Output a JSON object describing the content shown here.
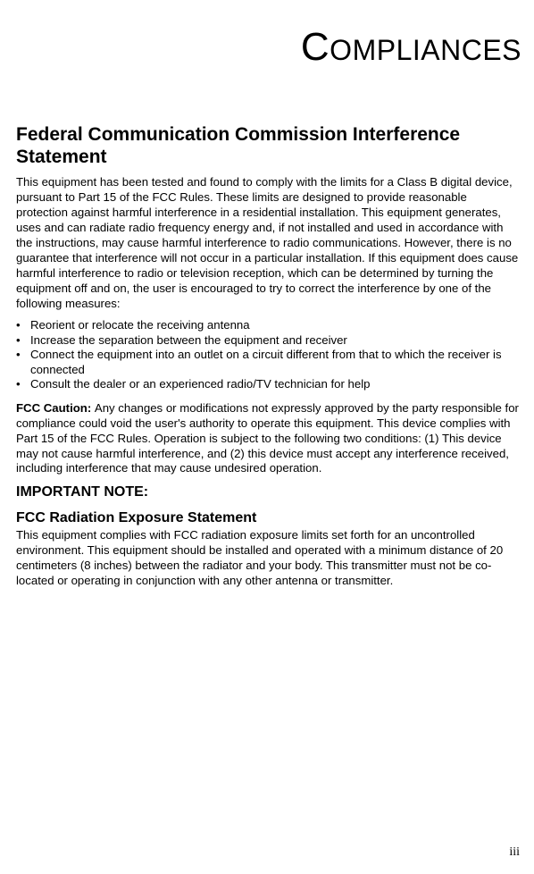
{
  "title_parts": {
    "first": "C",
    "rest": "OMPLIANCES"
  },
  "section1": {
    "heading": "Federal Communication Commission Interference Statement",
    "para1": "This equipment has been tested and found to comply with the limits for a Class B digital device, pursuant to Part 15 of the FCC Rules. These limits are designed to provide reasonable protection against harmful interference in a residential installation. This equipment generates, uses and can radiate radio frequency energy and, if not installed and used in accordance with the instructions, may cause harmful interference to radio communications. However, there is no guarantee that interference will not occur in a particular installation. If this equipment does cause harmful interference to radio or television reception, which can be determined by turning the equipment off and on, the user is encouraged to try to correct the interference by one of the following measures:",
    "bullets": [
      "Reorient or relocate the receiving antenna",
      "Increase the separation between the equipment and receiver",
      "Connect the equipment into an outlet on a circuit different from that to which the receiver is connected",
      "Consult the dealer or an experienced radio/TV technician for help"
    ],
    "caution_label": "FCC Caution: ",
    "caution_text": "Any changes or modifications not expressly approved by the party responsible for compliance could void the user's authority to operate this equipment. This device complies with Part 15 of the FCC Rules. Operation is subject to the following two conditions: (1) This device may not cause harmful interference, and (2) this device must accept any interference received, including interference that may cause undesired operation."
  },
  "section2": {
    "heading1": "IMPORTANT NOTE:",
    "heading2": "FCC Radiation Exposure Statement",
    "para": "This equipment complies with FCC radiation exposure limits set forth for an uncontrolled environment. This equipment should be installed and operated with a minimum distance of 20 centimeters (8 inches) between the radiator and your body. This transmitter must not be co-located or operating in conjunction with any other antenna or transmitter."
  },
  "page_number": "iii"
}
